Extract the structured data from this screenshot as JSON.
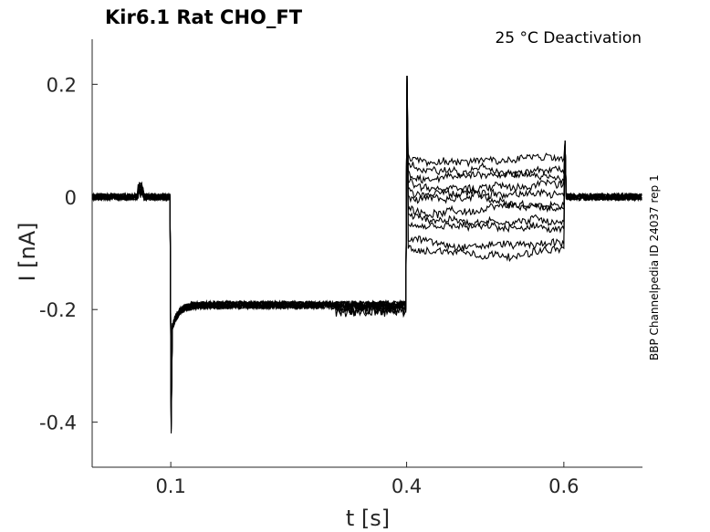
{
  "chart_data": {
    "type": "line",
    "title": "Kir6.1  Rat  CHO_FT",
    "annotation": "25 °C  Deactivation",
    "side_label": "BBP Channelpedia ID 24037 rep 1",
    "xlabel": "t [s]",
    "ylabel": "I [nA]",
    "xlim": [
      0.0,
      0.7
    ],
    "ylim": [
      -0.48,
      0.28
    ],
    "x_ticks": [
      0.1,
      0.4,
      0.6
    ],
    "x_tick_labels": [
      "0.1",
      "0.4",
      "0.6"
    ],
    "y_ticks": [
      0.2,
      0,
      -0.2,
      -0.4
    ],
    "y_tick_labels": [
      "0.2",
      "0",
      "-0.2",
      "-0.4"
    ],
    "grid": false,
    "line_color": "#000000",
    "protocol": {
      "holding_current": 0.0,
      "step1_start": 0.1,
      "step1_end": 0.4,
      "step1_current": -0.2,
      "step1_peak": -0.42,
      "step2_start": 0.4,
      "step2_end": 0.6,
      "step2_peak": 0.215,
      "step2_currents": [
        0.065,
        0.05,
        0.035,
        0.02,
        0.005,
        -0.01,
        -0.025,
        -0.04,
        -0.06,
        -0.08,
        -0.095
      ]
    }
  }
}
